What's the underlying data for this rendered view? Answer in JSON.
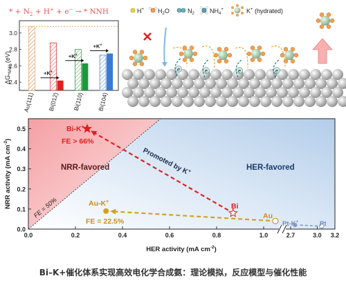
{
  "top_left_chart": {
    "title_parts": {
      "a": "* + N",
      "b": "2",
      "c": " + H",
      "d": "+",
      "e": " + e",
      "f": "−",
      "g": " → * NNH"
    },
    "ylabel_main": "ΔG",
    "ylabel_sub": "*NNH",
    "ylabel_unit": " (eV)",
    "chart_data": {
      "type": "bar",
      "categories": [
        "Au(111)",
        "Bi(012)",
        "Bi(110)",
        "Bi(104)"
      ],
      "series": [
        {
          "name": "",
          "values": [
            3.08,
            2.88,
            2.8,
            2.73
          ]
        },
        {
          "name": "+K+",
          "values": [
            null,
            2.42,
            2.63,
            2.75
          ]
        }
      ],
      "ylim": [
        2.3,
        3.15
      ],
      "yticks": [
        "2.4",
        "2.6",
        "2.8",
        "3.0"
      ],
      "k_label_main": "+K",
      "k_label_sup": "+"
    }
  },
  "legend": {
    "items": [
      {
        "name": "H",
        "sup": "+"
      },
      {
        "name": "H",
        "sub": "2",
        "rest": "O"
      },
      {
        "name": "N",
        "sub": "2"
      },
      {
        "name": "NH",
        "sub": "4",
        "sup": "+"
      },
      {
        "name": "K",
        "sup": "+",
        "rest": " (hydrated)"
      }
    ],
    "electron_label": "e"
  },
  "main_chart": {
    "chart_data": {
      "type": "scatter",
      "xlabel_main": "HER activity (mA cm",
      "xlabel_sup": "-2",
      "ylabel_main": "NRR activity (mA cm",
      "ylabel_sup": "-2",
      "xticks": [
        "0.0",
        "0.2",
        "0.4",
        "0.6",
        "0.8",
        "1.0",
        "2.7",
        "3.0",
        "3.2"
      ],
      "yticks": [
        "0.0",
        "0.1",
        "0.2",
        "0.3",
        "0.4",
        "0.5"
      ],
      "points": [
        {
          "label": "Bi-K+",
          "x": 0.25,
          "y": 0.5
        },
        {
          "label": "Bi",
          "x": 0.87,
          "y": 0.08
        },
        {
          "label": "Au-K+",
          "x": 0.33,
          "y": 0.09
        },
        {
          "label": "Au",
          "x": 1.05,
          "y": 0.04
        },
        {
          "label": "Pt-K+",
          "x": 2.75,
          "y": 0.01
        },
        {
          "label": "Pt",
          "x": 3.05,
          "y": 0.005
        }
      ]
    },
    "labels": {
      "nrr_region": "NRR-favored",
      "her_region": "HER-favored",
      "fe50": "FE = 50%",
      "promoted_main": "Promoted by K",
      "promoted_sup": "+",
      "bik_main": "Bi-K",
      "bik_sup": "+",
      "bik_fe": "FE > 66%",
      "bi": "Bi",
      "auk_main": "Au-K",
      "auk_sup": "+",
      "auk_fe": "FE = 22.5%",
      "au": "Au",
      "ptk_main": "Pt-K",
      "ptk_sup": "+",
      "pt": "Pt"
    }
  },
  "caption": "Bi–K+催化体系实现高效电化学合成氨：理论模拟，反应模型与催化性能"
}
